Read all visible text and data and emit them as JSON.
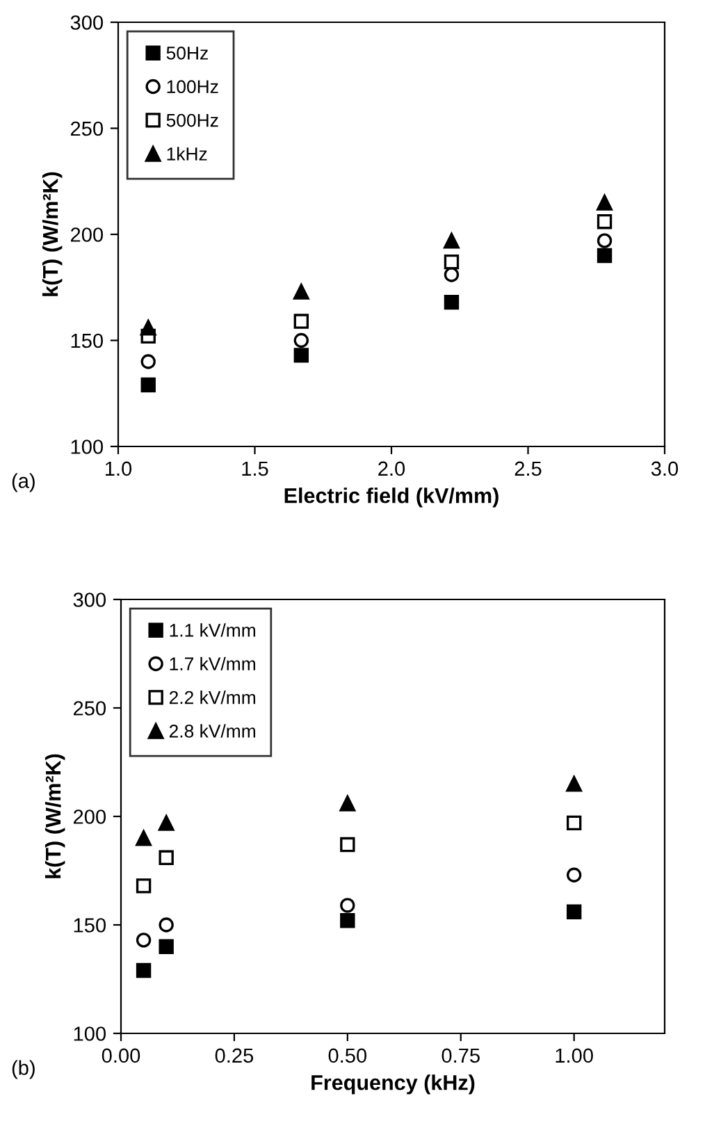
{
  "chart_data": [
    {
      "type": "scatter",
      "xlabel": "Electric field (kV/mm)",
      "ylabel": "k(T) (W/m²K)",
      "annotations": [
        "(a)"
      ],
      "x": [
        1.11,
        1.67,
        2.22,
        2.78
      ],
      "series": [
        {
          "name": "50Hz",
          "color": "#000000",
          "marker": "square",
          "values": [
            129,
            143,
            168,
            190
          ]
        },
        {
          "name": "100Hz",
          "color": "#000000",
          "marker": "circle",
          "values": [
            140,
            150,
            181,
            197
          ]
        },
        {
          "name": "500Hz",
          "color": "#000000",
          "marker": "square",
          "values": [
            152,
            159,
            187,
            206
          ]
        },
        {
          "name": "1kHz",
          "color": "#000000",
          "marker": "triangle",
          "values": [
            156,
            173,
            197,
            215
          ]
        }
      ],
      "xlim": [
        1.0,
        3.0
      ],
      "xticks": [
        {
          "value": 1.0,
          "label": "1.0"
        },
        {
          "value": 1.5,
          "label": "1.5"
        },
        {
          "value": 2.0,
          "label": "2.0"
        },
        {
          "value": 2.5,
          "label": "2.5"
        },
        {
          "value": 3.0,
          "label": "3.0"
        }
      ],
      "ylim": [
        100,
        300
      ],
      "yticks": [
        100,
        150,
        200,
        250,
        300
      ],
      "grid": false,
      "legend": "top left"
    },
    {
      "type": "scatter",
      "xlabel": "Frequency (kHz)",
      "ylabel": "k(T) (W/m²K)",
      "annotations": [
        "(b)"
      ],
      "x": [
        0.05,
        0.1,
        0.5,
        1.0
      ],
      "series": [
        {
          "name": "1.1 kV/mm",
          "color": "#000000",
          "marker": "square",
          "values": [
            129,
            140,
            152,
            156
          ]
        },
        {
          "name": "1.7 kV/mm",
          "color": "#000000",
          "marker": "circle",
          "values": [
            143,
            150,
            159,
            173
          ]
        },
        {
          "name": "2.2 kV/mm",
          "color": "#000000",
          "marker": "square",
          "values": [
            168,
            181,
            187,
            197
          ]
        },
        {
          "name": "2.8 kV/mm",
          "color": "#000000",
          "marker": "triangle",
          "values": [
            190,
            197,
            206,
            215
          ]
        }
      ],
      "xlim": [
        0.0,
        1.2
      ],
      "xticks": [
        {
          "value": 0.0,
          "label": "0.00"
        },
        {
          "value": 0.25,
          "label": "0.25"
        },
        {
          "value": 0.5,
          "label": "0.50"
        },
        {
          "value": 0.75,
          "label": "0.75"
        },
        {
          "value": 1.0,
          "label": "1.00"
        }
      ],
      "ylim": [
        100,
        300
      ],
      "yticks": [
        100,
        150,
        200,
        250,
        300
      ],
      "grid": false,
      "legend": "top left"
    }
  ]
}
